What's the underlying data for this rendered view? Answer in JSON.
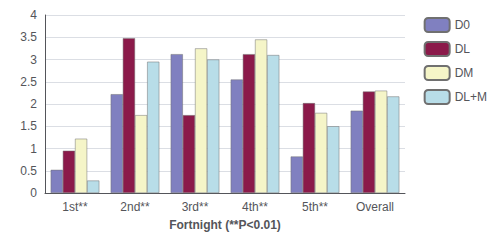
{
  "chart_data": {
    "type": "bar",
    "xlabel": "Fortnight (**P<0.01)",
    "categories": [
      "1st**",
      "2nd**",
      "3rd**",
      "4th**",
      "5th**",
      "Overall"
    ],
    "series": [
      {
        "name": "D0",
        "color": "#8080c0",
        "values": [
          0.52,
          2.22,
          3.12,
          2.55,
          0.82,
          1.85
        ]
      },
      {
        "name": "DL",
        "color": "#8b1a4a",
        "values": [
          0.95,
          3.48,
          1.75,
          3.12,
          2.02,
          2.28
        ]
      },
      {
        "name": "DM",
        "color": "#f5f5c8",
        "values": [
          1.22,
          1.75,
          3.25,
          3.45,
          1.8,
          2.3
        ]
      },
      {
        "name": "DL+M",
        "color": "#b8dde8",
        "values": [
          0.28,
          2.95,
          3.0,
          3.1,
          1.5,
          2.17
        ]
      }
    ],
    "ylim": [
      0,
      4
    ],
    "yticks": [
      0,
      0.5,
      1,
      1.5,
      2,
      2.5,
      3,
      3.5,
      4
    ],
    "grid": true,
    "legend": "right"
  }
}
